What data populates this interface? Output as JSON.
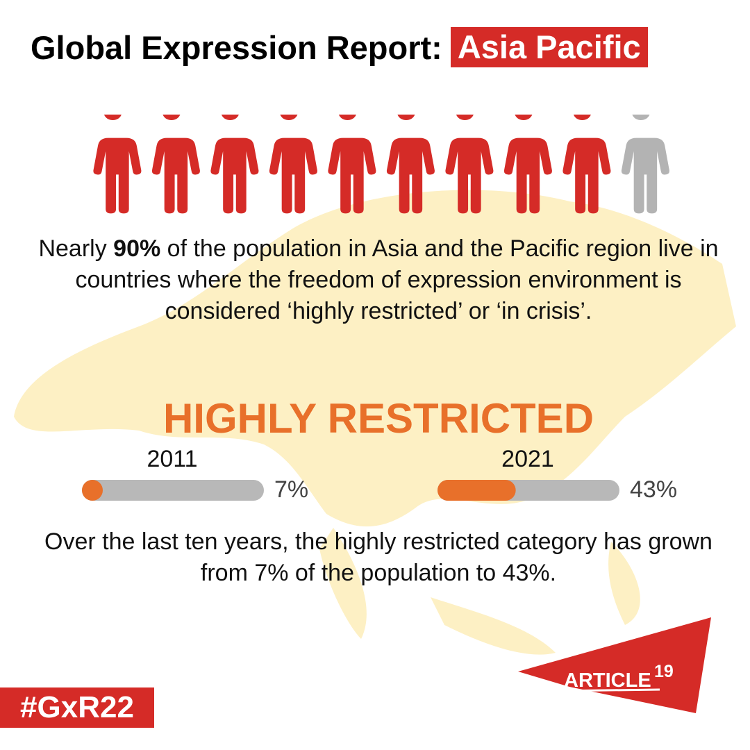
{
  "header": {
    "title": "Global Expression Report:",
    "highlight": "Asia Pacific"
  },
  "pictogram": {
    "count": 10,
    "highlighted": 9,
    "color": "#d52b27",
    "rest_color": "#b3b3b3"
  },
  "intro": {
    "before": "Nearly",
    "emphasis": "90%",
    "after": "of the population in Asia and the Pacific region live in countries where the freedom of expression environment is considered ‘highly restricted’ or ‘in crisis’."
  },
  "section_title": "HIGHLY RESTRICTED",
  "bars": [
    {
      "year": "2011",
      "value": 7,
      "label": "7%"
    },
    {
      "year": "2021",
      "value": 43,
      "label": "43%"
    }
  ],
  "bar_color": "#e8702a",
  "track_color": "#b8b8b8",
  "summary": "Over the last ten years, the highly restricted category has grown from 7% of the population to 43%.",
  "hashtag": "#GxR22",
  "logo": {
    "name": "ARTICLE",
    "number": "19"
  }
}
